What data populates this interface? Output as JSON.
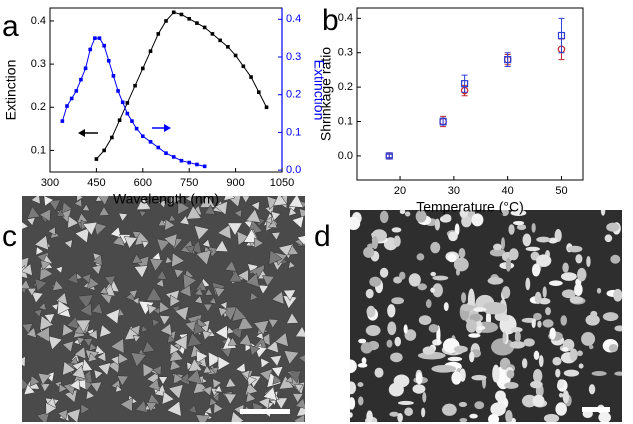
{
  "chart_data": [
    {
      "type": "line",
      "panel_label": "a",
      "x_label": "Wavelength (nm)",
      "y_label": "Extinction",
      "y2_label": "Extinction",
      "xlim": [
        300,
        1050
      ],
      "xticks": [
        300,
        450,
        600,
        750,
        900,
        1050
      ],
      "ylim": [
        0.05,
        0.43
      ],
      "yticks": [
        0.1,
        0.2,
        0.3,
        0.4
      ],
      "y2lim": [
        -0.005,
        0.43
      ],
      "y2ticks": [
        {
          "value": 0,
          "label": "0.0"
        },
        0.1,
        0.2,
        0.3,
        0.4
      ],
      "y2_color": "#0000ff",
      "series": [
        {
          "color": "#000000",
          "axis": "y",
          "x": [
            450,
            475,
            500,
            525,
            550,
            575,
            600,
            625,
            650,
            675,
            700,
            725,
            750,
            775,
            800,
            825,
            850,
            875,
            900,
            925,
            950,
            975,
            1000
          ],
          "values": [
            0.08,
            0.1,
            0.13,
            0.17,
            0.21,
            0.25,
            0.29,
            0.33,
            0.37,
            0.4,
            0.42,
            0.415,
            0.405,
            0.395,
            0.385,
            0.37,
            0.355,
            0.34,
            0.32,
            0.295,
            0.27,
            0.235,
            0.2
          ]
        },
        {
          "color": "#0000ff",
          "axis": "y2",
          "x": [
            340,
            355,
            370,
            385,
            400,
            415,
            430,
            445,
            460,
            475,
            490,
            505,
            520,
            535,
            550,
            565,
            580,
            600,
            625,
            650,
            675,
            700,
            725,
            750,
            775,
            800
          ],
          "values": [
            0.13,
            0.17,
            0.19,
            0.21,
            0.24,
            0.27,
            0.32,
            0.35,
            0.35,
            0.33,
            0.29,
            0.25,
            0.21,
            0.18,
            0.15,
            0.13,
            0.11,
            0.09,
            0.075,
            0.06,
            0.045,
            0.035,
            0.025,
            0.02,
            0.015,
            0.01
          ]
        }
      ]
    },
    {
      "type": "scatter",
      "panel_label": "b",
      "x_label": "Temperature (°C)",
      "y_label": "Shrinkage ratio",
      "xlim": [
        12,
        54
      ],
      "xticks": [
        20,
        30,
        40,
        50
      ],
      "ylim": [
        -0.07,
        0.43
      ],
      "yticks": [
        {
          "value": 0,
          "label": "0.0"
        },
        0.1,
        0.2,
        0.3,
        0.4
      ],
      "series": [
        {
          "color": "#c0282d",
          "marker": "circle",
          "x": [
            18,
            28,
            32,
            40,
            50
          ],
          "values": [
            0,
            0.1,
            0.19,
            0.28,
            0.31
          ],
          "errors": [
            0.008,
            0.015,
            0.015,
            0.015,
            0.03
          ]
        },
        {
          "color": "#2d3fd6",
          "marker": "square",
          "x": [
            18,
            28,
            32,
            40,
            50
          ],
          "values": [
            0,
            0.1,
            0.21,
            0.28,
            0.35
          ],
          "errors": [
            0.005,
            0.01,
            0.025,
            0.02,
            0.05
          ]
        }
      ]
    }
  ],
  "panels": [
    {
      "label": "c"
    },
    {
      "label": "d"
    }
  ]
}
